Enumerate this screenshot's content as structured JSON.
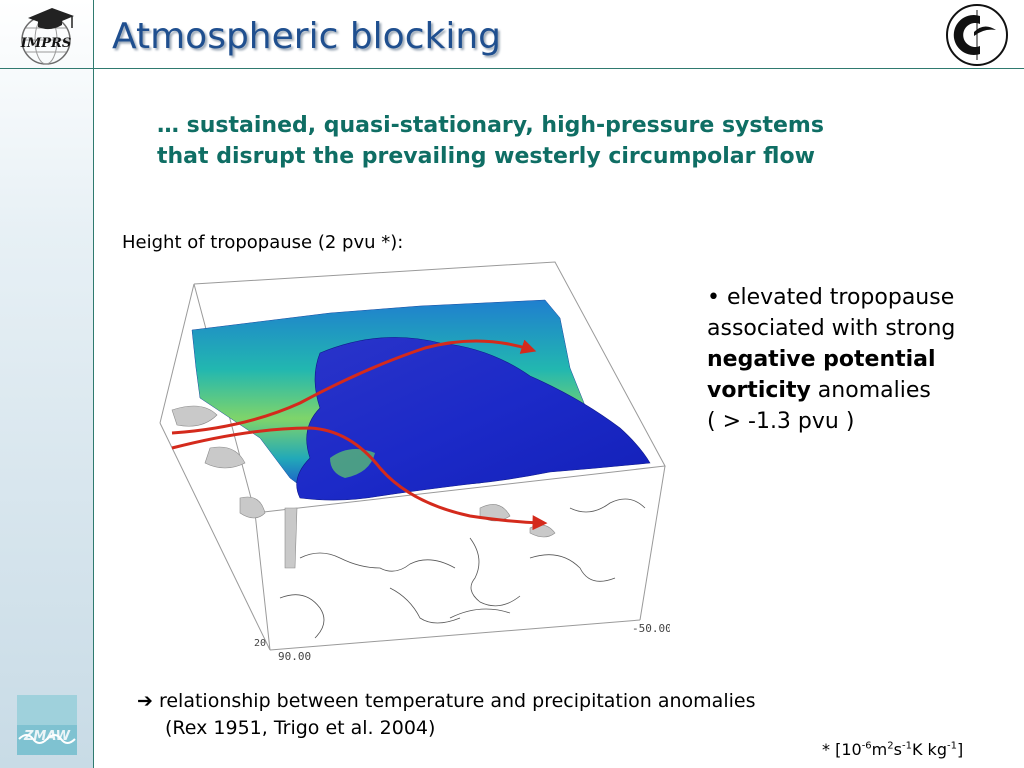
{
  "slide": {
    "title": "Atmospheric blocking",
    "definition_line1": "… sustained, quasi-stationary, high-pressure systems",
    "definition_line2": "that disrupt the prevailing westerly circumpolar flow",
    "caption": "Height of tropopause (2 pvu *):",
    "bullet": {
      "marker": "•",
      "text1": " elevated tropopause associated with strong ",
      "bold": "negative potential vorticity",
      "text2": " anomalies",
      "range": "( > -1.3 pvu )"
    },
    "relation": {
      "arrow": "➔",
      "line1": " relationship between temperature and precipitation anomalies",
      "line2": "(Rex 1951, Trigo et al. 2004)"
    },
    "footnote": {
      "prefix": "* [10",
      "e1": "-6",
      "m": "m",
      "e2": "2",
      "s": "s",
      "e3": "-1",
      "k": "K kg",
      "e4": "-1",
      "suffix": "]"
    }
  },
  "figure": {
    "axis_labels": [
      "-50.00",
      "90.00",
      "20"
    ]
  },
  "logos": {
    "left": "IMPRS",
    "bottom": "ZMAW"
  },
  "colors": {
    "title": "#1f4f8f",
    "definition": "#0f6e64",
    "accent_rule": "#2f7a6f",
    "flow_arrow": "#d42a1c"
  }
}
